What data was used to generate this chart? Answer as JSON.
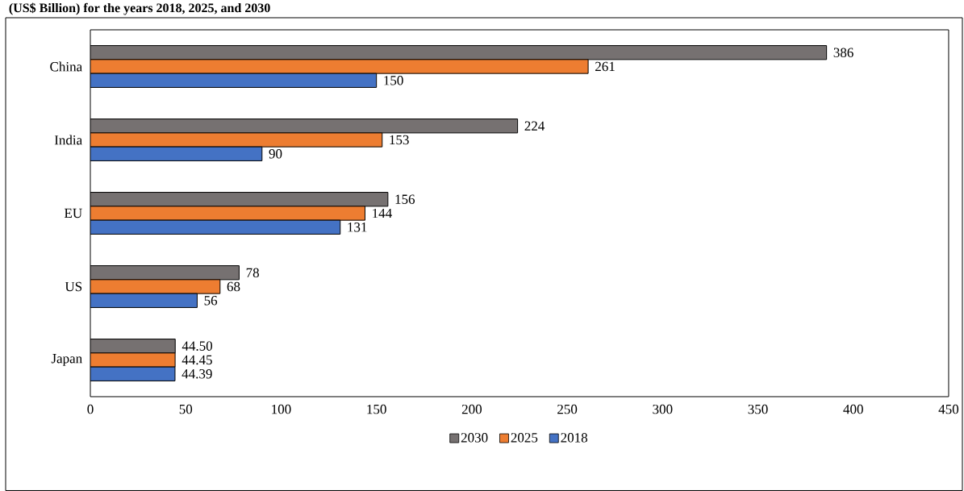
{
  "chart_data": {
    "type": "bar",
    "orientation": "horizontal",
    "title": "(US$ Billion) for the years 2018, 2025, and 2030",
    "categories": [
      "China",
      "India",
      "EU",
      "US",
      "Japan"
    ],
    "series": [
      {
        "name": "2030",
        "color": "#767171",
        "values": [
          386,
          224,
          156,
          78,
          44.5
        ],
        "value_labels": [
          "386",
          "224",
          "156",
          "78",
          "44.50"
        ]
      },
      {
        "name": "2025",
        "color": "#ed7d31",
        "values": [
          261,
          153,
          144,
          68,
          44.45
        ],
        "value_labels": [
          "261",
          "153",
          "144",
          "68",
          "44.45"
        ]
      },
      {
        "name": "2018",
        "color": "#4472c4",
        "values": [
          150,
          90,
          131,
          56,
          44.39
        ],
        "value_labels": [
          "150",
          "90",
          "131",
          "56",
          "44.39"
        ]
      }
    ],
    "xlim": [
      0,
      450
    ],
    "xticks": [
      0,
      50,
      100,
      150,
      200,
      250,
      300,
      350,
      400,
      450
    ],
    "grid": false,
    "legend": "bottom"
  }
}
